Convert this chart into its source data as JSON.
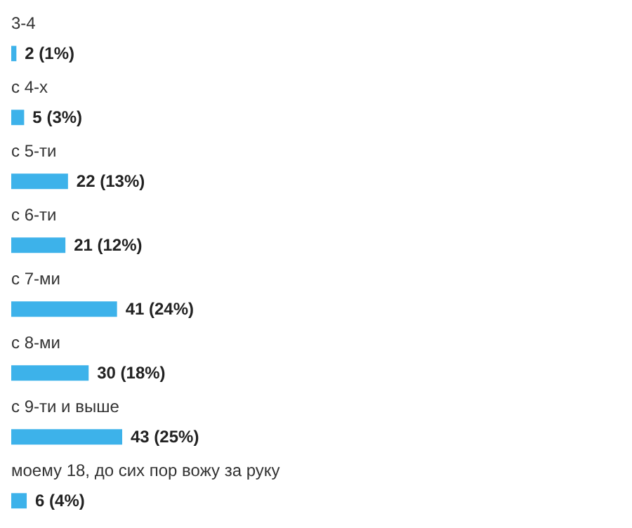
{
  "chart_data": {
    "type": "bar",
    "orientation": "horizontal",
    "categories": [
      "3-4",
      "с 4-х",
      "с 5-ти",
      "с 6-ти",
      "с 7-ми",
      "с 8-ми",
      "с 9-ти и выше",
      "моему 18, до сих пор вожу за руку"
    ],
    "values": [
      2,
      5,
      22,
      21,
      41,
      30,
      43,
      6
    ],
    "value_labels": [
      "2 (1%)",
      "5 (3%)",
      "22 (13%)",
      "21 (12%)",
      "41 (24%)",
      "30 (18%)",
      "43 (25%)",
      "6 (4%)"
    ],
    "color": "#3db2ea"
  }
}
